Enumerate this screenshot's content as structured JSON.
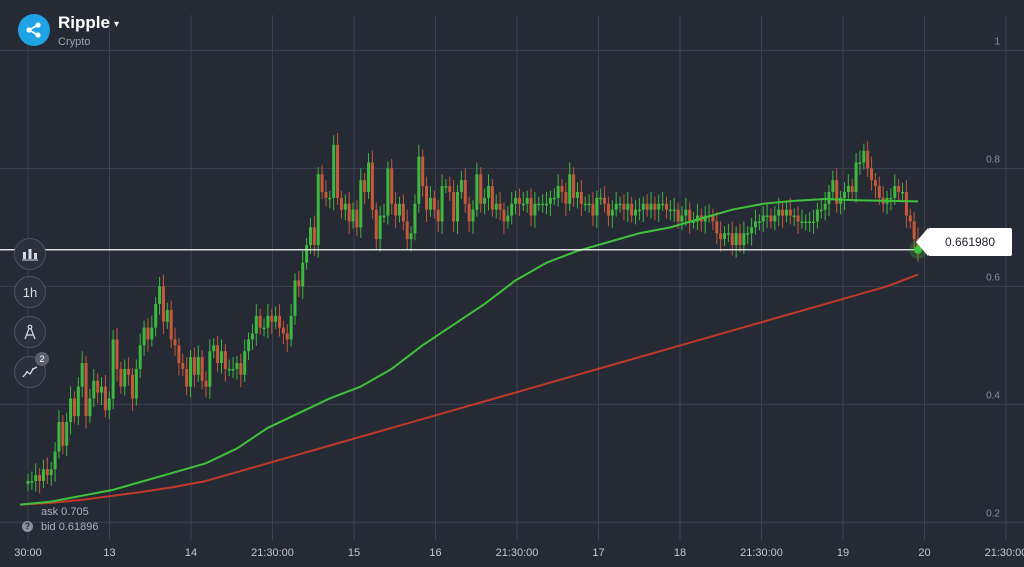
{
  "asset": {
    "name": "Ripple",
    "category": "Crypto",
    "caret": "▾",
    "logo_color": "#1fa3e5"
  },
  "toolbar": {
    "chart_type_icon": "candles-icon",
    "timeframe_label": "1h",
    "drawing_tool_icon": "compass-icon",
    "indicators_icon": "indicators-icon",
    "indicators_badge": "2"
  },
  "current_price": {
    "label": "0.661980",
    "value": 0.66198
  },
  "quote": {
    "ask": "ask 0.705",
    "bid": "bid 0.61896",
    "help_icon": "?"
  },
  "colors": {
    "background": "#262a35",
    "grid": "#3d4252",
    "up": "#3fb83f",
    "down": "#c45a3a",
    "ma_fast": "#3fc23a",
    "ma_slow": "#c0392b",
    "price_line": "#ffffff"
  },
  "chart_data": {
    "type": "candlestick",
    "y_ticks": [
      "1",
      "0.8",
      "0.6",
      "0.4",
      "0.2"
    ],
    "y_tick_values": [
      1.0,
      0.8,
      0.6,
      0.4,
      0.2
    ],
    "y_range": [
      0.17,
      1.06
    ],
    "x_ticks": [
      "30:00",
      "13",
      "14",
      "21:30:00",
      "15",
      "16",
      "21:30:00",
      "17",
      "18",
      "21:30:00",
      "19",
      "20",
      "21:30:00"
    ],
    "candles_close": [
      0.27,
      0.27,
      0.28,
      0.27,
      0.29,
      0.28,
      0.29,
      0.32,
      0.37,
      0.33,
      0.37,
      0.41,
      0.38,
      0.43,
      0.47,
      0.38,
      0.41,
      0.44,
      0.42,
      0.43,
      0.39,
      0.41,
      0.51,
      0.46,
      0.43,
      0.46,
      0.45,
      0.41,
      0.46,
      0.5,
      0.53,
      0.51,
      0.53,
      0.57,
      0.6,
      0.54,
      0.56,
      0.51,
      0.5,
      0.47,
      0.46,
      0.43,
      0.48,
      0.45,
      0.48,
      0.44,
      0.43,
      0.49,
      0.5,
      0.47,
      0.49,
      0.46,
      0.46,
      0.46,
      0.47,
      0.45,
      0.49,
      0.51,
      0.52,
      0.55,
      0.53,
      0.53,
      0.55,
      0.54,
      0.55,
      0.53,
      0.52,
      0.51,
      0.55,
      0.61,
      0.6,
      0.64,
      0.67,
      0.7,
      0.67,
      0.79,
      0.76,
      0.75,
      0.75,
      0.84,
      0.75,
      0.73,
      0.74,
      0.71,
      0.73,
      0.7,
      0.78,
      0.76,
      0.81,
      0.73,
      0.68,
      0.72,
      0.72,
      0.8,
      0.74,
      0.72,
      0.74,
      0.71,
      0.68,
      0.69,
      0.74,
      0.82,
      0.77,
      0.73,
      0.75,
      0.73,
      0.71,
      0.77,
      0.77,
      0.76,
      0.71,
      0.76,
      0.78,
      0.74,
      0.71,
      0.73,
      0.79,
      0.74,
      0.75,
      0.77,
      0.73,
      0.74,
      0.73,
      0.71,
      0.72,
      0.74,
      0.75,
      0.74,
      0.74,
      0.75,
      0.72,
      0.74,
      0.74,
      0.74,
      0.74,
      0.75,
      0.75,
      0.77,
      0.76,
      0.74,
      0.79,
      0.75,
      0.76,
      0.74,
      0.74,
      0.74,
      0.72,
      0.75,
      0.75,
      0.74,
      0.72,
      0.73,
      0.74,
      0.74,
      0.73,
      0.74,
      0.72,
      0.73,
      0.73,
      0.74,
      0.73,
      0.74,
      0.73,
      0.74,
      0.74,
      0.73,
      0.73,
      0.73,
      0.71,
      0.72,
      0.73,
      0.71,
      0.71,
      0.72,
      0.71,
      0.72,
      0.72,
      0.71,
      0.69,
      0.68,
      0.69,
      0.69,
      0.67,
      0.69,
      0.67,
      0.69,
      0.69,
      0.7,
      0.71,
      0.71,
      0.72,
      0.72,
      0.71,
      0.72,
      0.73,
      0.72,
      0.73,
      0.72,
      0.72,
      0.71,
      0.71,
      0.71,
      0.71,
      0.71,
      0.73,
      0.73,
      0.74,
      0.76,
      0.78,
      0.74,
      0.75,
      0.76,
      0.77,
      0.76,
      0.81,
      0.81,
      0.83,
      0.8,
      0.78,
      0.77,
      0.75,
      0.74,
      0.75,
      0.75,
      0.77,
      0.76,
      0.76,
      0.72,
      0.71,
      0.68,
      0.66
    ],
    "ma_fast": [
      0.23,
      0.235,
      0.245,
      0.255,
      0.27,
      0.285,
      0.3,
      0.325,
      0.36,
      0.385,
      0.41,
      0.43,
      0.46,
      0.5,
      0.535,
      0.57,
      0.61,
      0.64,
      0.66,
      0.675,
      0.69,
      0.7,
      0.715,
      0.73,
      0.74,
      0.745,
      0.748,
      0.746,
      0.745,
      0.744
    ],
    "ma_slow": [
      0.23,
      0.233,
      0.238,
      0.245,
      0.252,
      0.26,
      0.27,
      0.285,
      0.3,
      0.315,
      0.33,
      0.345,
      0.36,
      0.375,
      0.39,
      0.405,
      0.42,
      0.435,
      0.45,
      0.465,
      0.48,
      0.495,
      0.51,
      0.525,
      0.54,
      0.555,
      0.57,
      0.585,
      0.6,
      0.62
    ]
  }
}
